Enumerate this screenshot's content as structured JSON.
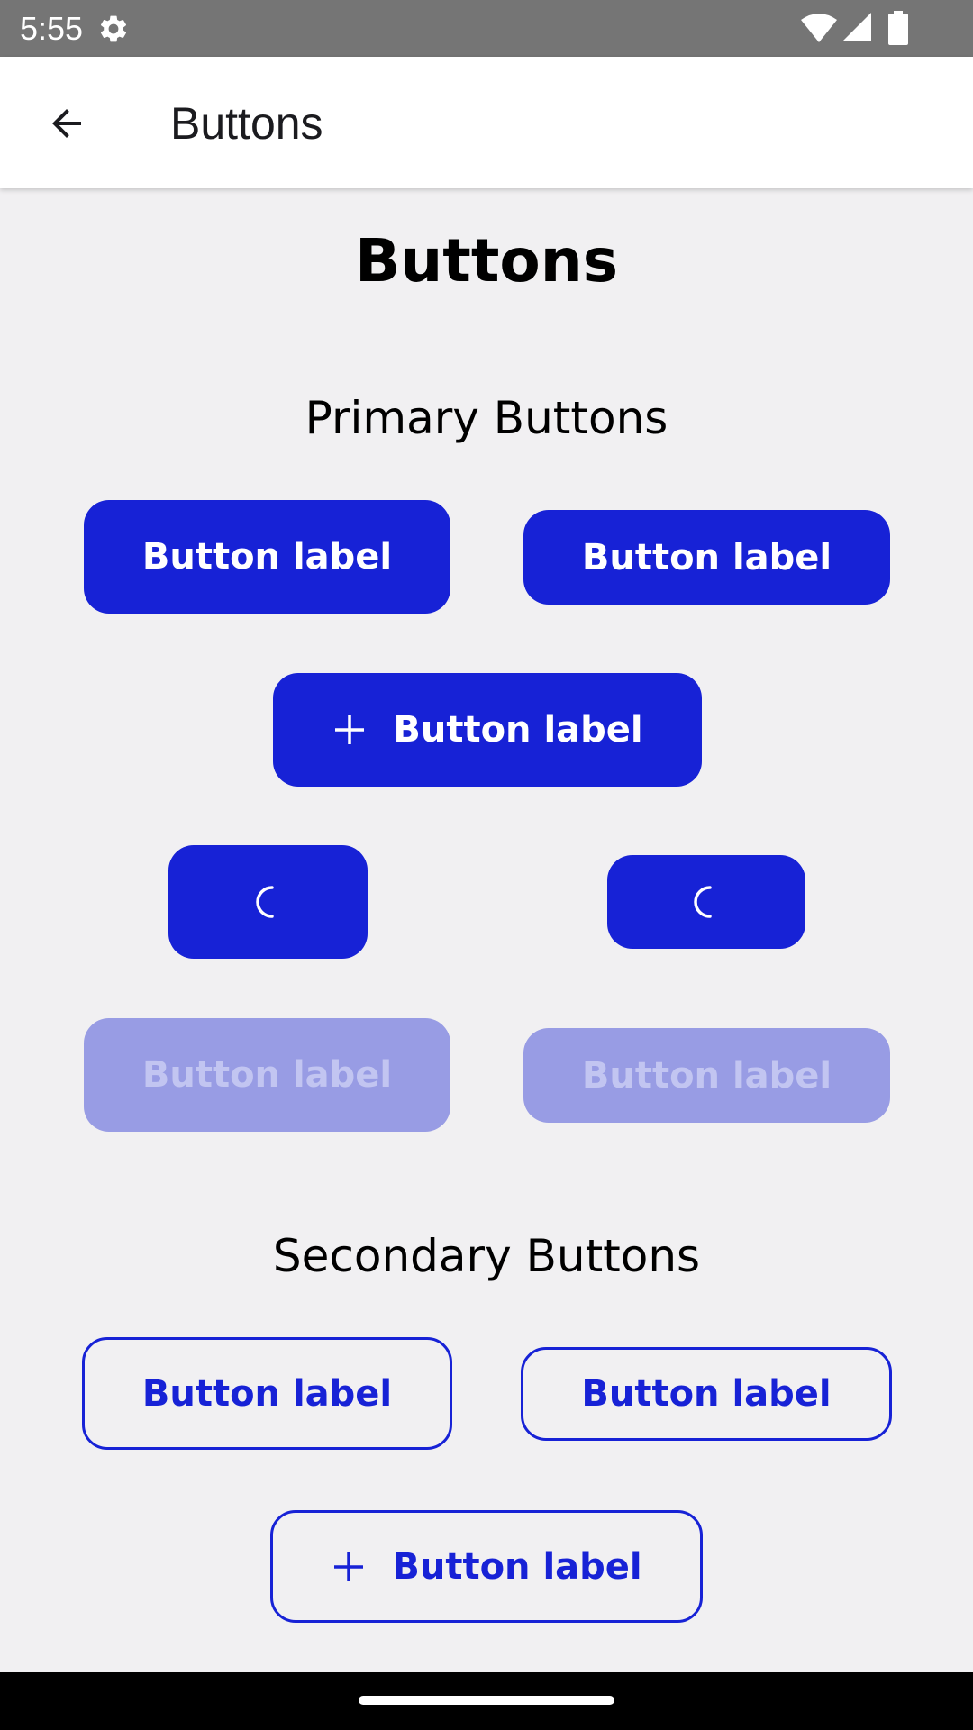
{
  "status_bar": {
    "time": "5:55",
    "icons": [
      "gear-icon",
      "wifi-icon",
      "signal-icon",
      "battery-icon"
    ]
  },
  "app_bar": {
    "back_icon": "arrow-left-icon",
    "title": "Buttons"
  },
  "page": {
    "title": "Buttons"
  },
  "primary_section": {
    "title": "Primary Buttons",
    "large_label": "Button label",
    "medium_label": "Button label",
    "icon_label": "Button label",
    "icon": "plus-icon",
    "loading_icon": "spinner-icon",
    "disabled_large_label": "Button label",
    "disabled_medium_label": "Button label"
  },
  "secondary_section": {
    "title": "Secondary Buttons",
    "large_label": "Button label",
    "medium_label": "Button label",
    "icon_label": "Button label",
    "icon": "plus-icon"
  },
  "colors": {
    "primary": "#1722d6",
    "disabled": "#989ce4",
    "background": "#f1f0f2",
    "status_bar": "#757575"
  }
}
